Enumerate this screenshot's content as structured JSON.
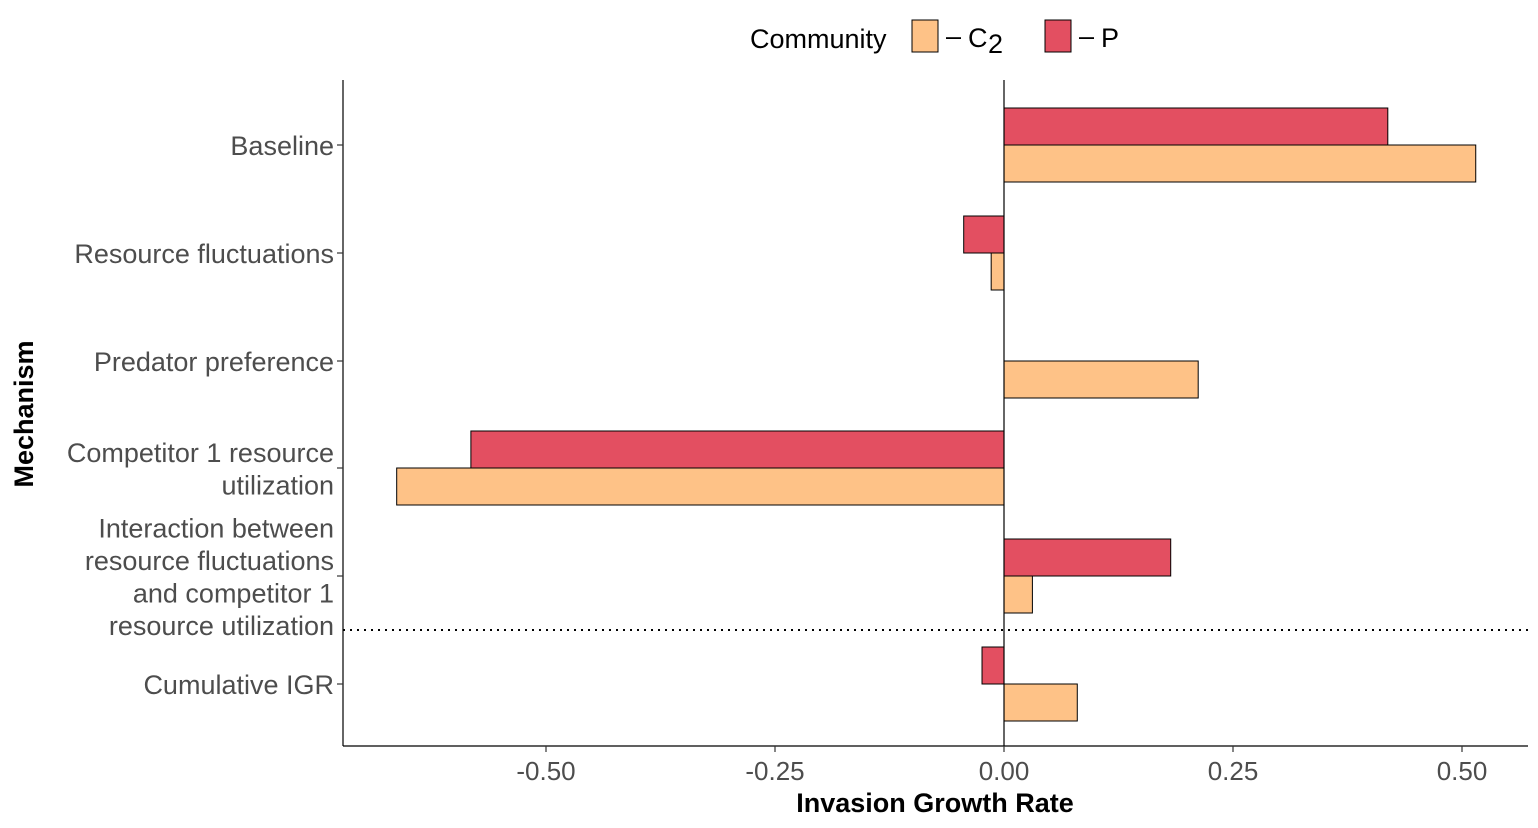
{
  "chart_data": {
    "type": "bar",
    "orientation": "horizontal",
    "xlabel": "Invasion Growth Rate",
    "ylabel": "Mechanism",
    "xlim": [
      -0.72,
      0.57
    ],
    "x_ticks": [
      -0.5,
      -0.25,
      0,
      0.25,
      0.5
    ],
    "x_tick_labels": [
      "-0.50",
      "-0.25",
      "0.00",
      "0.25",
      "0.50"
    ],
    "categories": [
      [
        "Baseline"
      ],
      [
        "Resource fluctuations"
      ],
      [
        "Predator preference"
      ],
      [
        "Competitor 1 resource",
        "utilization"
      ],
      [
        "Interaction between",
        "resource fluctuations",
        "and competitor 1",
        "resource utilization"
      ],
      [
        "Cumulative IGR"
      ]
    ],
    "series": [
      {
        "name": "C2",
        "color": "#FEC287",
        "values": [
          0.515,
          -0.014,
          0.212,
          -0.663,
          0.031,
          0.08
        ]
      },
      {
        "name": "P",
        "color": "#E34F61",
        "values": [
          0.419,
          -0.044,
          0.0,
          -0.582,
          0.182,
          -0.024
        ]
      }
    ],
    "legend": {
      "title": "Community",
      "placement": "top",
      "entries": [
        {
          "dash": "–",
          "main": "C",
          "sub": "2"
        },
        {
          "dash": "–",
          "main": "P",
          "sub": ""
        }
      ]
    },
    "separator": {
      "style": "dotted",
      "between_categories": [
        4,
        5
      ]
    },
    "grid": false
  }
}
